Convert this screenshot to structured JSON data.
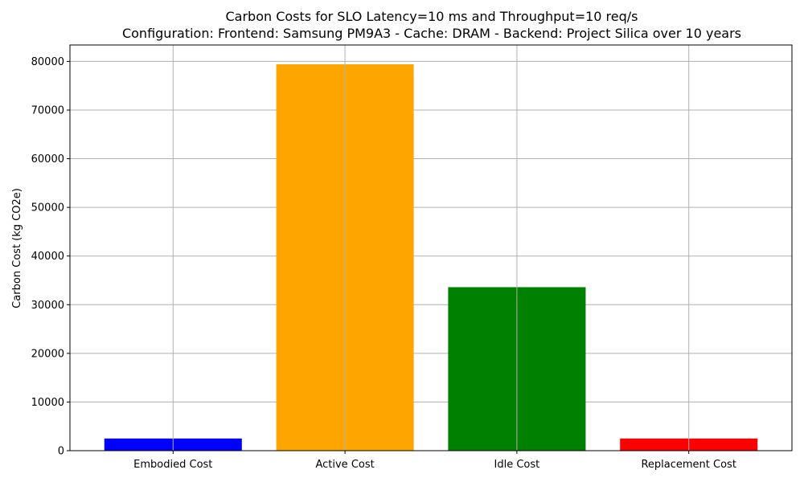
{
  "chart_data": {
    "type": "bar",
    "title": "Carbon Costs for SLO Latency=10 ms and Throughput=10 req/s",
    "subtitle": "Configuration: Frontend: Samsung PM9A3 - Cache: DRAM - Backend: Project Silica over 10 years",
    "xlabel": "",
    "ylabel": "Carbon Cost (kg CO2e)",
    "categories": [
      "Embodied Cost",
      "Active Cost",
      "Idle Cost",
      "Replacement Cost"
    ],
    "values": [
      2500,
      79400,
      33600,
      2500
    ],
    "colors": [
      "#0000ff",
      "#ffa500",
      "#008000",
      "#ff0000"
    ],
    "ylim": [
      0,
      83370
    ],
    "yticks": [
      0,
      10000,
      20000,
      30000,
      40000,
      50000,
      60000,
      70000,
      80000
    ],
    "ytick_labels": [
      "0",
      "10000",
      "20000",
      "30000",
      "40000",
      "50000",
      "60000",
      "70000",
      "80000"
    ],
    "grid": true
  }
}
